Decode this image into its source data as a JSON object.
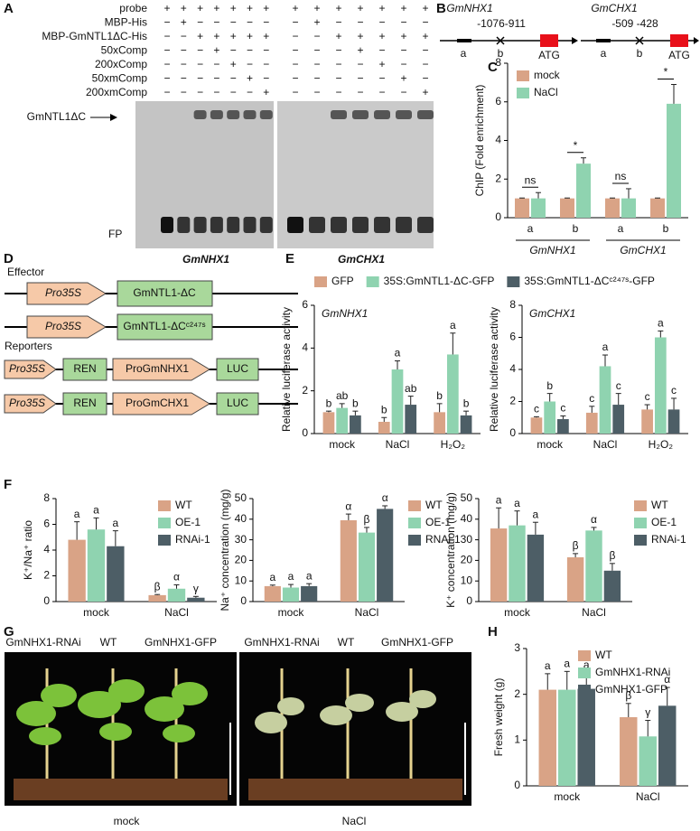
{
  "panel_labels": [
    "A",
    "B",
    "C",
    "D",
    "E",
    "F",
    "G",
    "H"
  ],
  "gel": {
    "rows": [
      {
        "label": "probe",
        "left": [
          "+",
          "+",
          "+",
          "+",
          "+",
          "+",
          "+"
        ],
        "right": [
          "+",
          "+",
          "+",
          "+",
          "+",
          "+",
          "+"
        ]
      },
      {
        "label": "MBP-His",
        "left": [
          "−",
          "+",
          "−",
          "−",
          "−",
          "−",
          "−"
        ],
        "right": [
          "−",
          "+",
          "−",
          "−",
          "−",
          "−",
          "−"
        ]
      },
      {
        "label": "MBP-GmNTL1ΔC-His",
        "left": [
          "−",
          "−",
          "+",
          "+",
          "+",
          "+",
          "+"
        ],
        "right": [
          "−",
          "−",
          "+",
          "+",
          "+",
          "+",
          "+"
        ]
      },
      {
        "label": "50xComp",
        "left": [
          "−",
          "−",
          "−",
          "+",
          "−",
          "−",
          "−"
        ],
        "right": [
          "−",
          "−",
          "−",
          "+",
          "−",
          "−",
          "−"
        ]
      },
      {
        "label": "200xComp",
        "left": [
          "−",
          "−",
          "−",
          "−",
          "+",
          "−",
          "−"
        ],
        "right": [
          "−",
          "−",
          "−",
          "−",
          "+",
          "−",
          "−"
        ]
      },
      {
        "label": "50xmComp",
        "left": [
          "−",
          "−",
          "−",
          "−",
          "−",
          "+",
          "−"
        ],
        "right": [
          "−",
          "−",
          "−",
          "−",
          "−",
          "+",
          "−"
        ]
      },
      {
        "label": "200xmComp",
        "left": [
          "−",
          "−",
          "−",
          "−",
          "−",
          "−",
          "+"
        ],
        "right": [
          "−",
          "−",
          "−",
          "−",
          "−",
          "−",
          "+"
        ]
      }
    ],
    "band_label": "GmNTL1ΔC",
    "free_probe": "FP",
    "gels": [
      "GmNHX1",
      "GmCHX1"
    ]
  },
  "promoters": [
    {
      "gene": "GmNHX1",
      "region": "-1076-911",
      "sites": [
        "a",
        "b"
      ],
      "start": "ATG"
    },
    {
      "gene": "GmCHX1",
      "region": "-509 -428",
      "sites": [
        "a",
        "b"
      ],
      "start": "ATG"
    }
  ],
  "constructs": {
    "effector_title": "Effector",
    "effectors": [
      [
        "Pro35S",
        "GmNTL1-ΔC"
      ],
      [
        "Pro35S",
        "GmNTL1-ΔCᶜ²⁴⁷ˢ"
      ]
    ],
    "reporters_title": "Reporters",
    "reporters": [
      [
        "Pro35S",
        "REN",
        "ProGmNHX1",
        "LUC"
      ],
      [
        "Pro35S",
        "REN",
        "ProGmCHX1",
        "LUC"
      ]
    ]
  },
  "photos": {
    "genotypes": [
      "GmNHX1-RNAi",
      "WT",
      "GmNHX1-GFP"
    ],
    "conditions": [
      "mock",
      "NaCl"
    ]
  },
  "chart_data": [
    {
      "type": "bar",
      "ylabel": "ChIP (Fold enrichment)",
      "categories": [
        "a",
        "b",
        "a",
        "b"
      ],
      "groups": [
        "GmNHX1",
        "GmCHX1"
      ],
      "annotations": [
        "ns",
        "*",
        "ns",
        "*"
      ],
      "legend": "upper left",
      "ylim": [
        0,
        8
      ],
      "yticks": [
        0,
        2,
        4,
        6,
        8
      ],
      "series": [
        {
          "name": "mock",
          "color": "#d9a386",
          "values": [
            1,
            1,
            1,
            1
          ],
          "errors": [
            0.02,
            0.02,
            0.02,
            0.02
          ]
        },
        {
          "name": "NaCl",
          "color": "#8fd3b0",
          "values": [
            1.0,
            2.8,
            1.0,
            5.9
          ],
          "errors": [
            0.3,
            0.3,
            0.5,
            1.0
          ]
        }
      ]
    },
    {
      "type": "bar",
      "title": "GmNHX1",
      "ylabel": "Relative luciferase activity",
      "categories": [
        "mock",
        "NaCl",
        "H₂O₂"
      ],
      "legend": "top",
      "ylim": [
        0,
        6
      ],
      "yticks": [
        0,
        2,
        4,
        6
      ],
      "series": [
        {
          "name": "GFP",
          "color": "#d9a386",
          "values": [
            1.0,
            0.55,
            1.0
          ],
          "errors": [
            0.05,
            0.2,
            0.4
          ],
          "letters": [
            "b",
            "b",
            "b"
          ]
        },
        {
          "name": "35S:GmNTL1-ΔC-GFP",
          "color": "#8fd3b0",
          "values": [
            1.2,
            3.0,
            3.7
          ],
          "errors": [
            0.2,
            0.4,
            1.0
          ],
          "letters": [
            "ab",
            "a",
            "a"
          ]
        },
        {
          "name": "35S:GmNTL1-ΔCᶜ²⁴⁷ˢ-GFP",
          "color": "#4d5e66",
          "values": [
            0.85,
            1.35,
            0.85
          ],
          "errors": [
            0.2,
            0.4,
            0.2
          ],
          "letters": [
            "b",
            "ab",
            "b"
          ]
        }
      ]
    },
    {
      "type": "bar",
      "title": "GmCHX1",
      "ylabel": "Relative luciferase activity",
      "categories": [
        "mock",
        "NaCl",
        "H₂O₂"
      ],
      "ylim": [
        0,
        8
      ],
      "yticks": [
        0,
        2,
        4,
        6,
        8
      ],
      "series": [
        {
          "color": "#d9a386",
          "values": [
            1.0,
            1.3,
            1.5
          ],
          "errors": [
            0.05,
            0.4,
            0.3
          ],
          "letters": [
            "c",
            "c",
            "c"
          ]
        },
        {
          "color": "#8fd3b0",
          "values": [
            2.0,
            4.2,
            6.0
          ],
          "errors": [
            0.5,
            0.7,
            0.4
          ],
          "letters": [
            "b",
            "a",
            "a"
          ]
        },
        {
          "color": "#4d5e66",
          "values": [
            0.9,
            1.8,
            1.5
          ],
          "errors": [
            0.2,
            0.7,
            0.7
          ],
          "letters": [
            "c",
            "c",
            "c"
          ]
        }
      ]
    },
    {
      "type": "bar",
      "ylabel": "K⁺/Na⁺ ratio",
      "categories": [
        "mock",
        "NaCl"
      ],
      "legend": "upper right",
      "ylim": [
        0,
        8
      ],
      "yticks": [
        0,
        2,
        4,
        6,
        8
      ],
      "series": [
        {
          "name": "WT",
          "color": "#d9a386",
          "values": [
            4.8,
            0.5
          ],
          "errors": [
            1.4,
            0.05
          ],
          "letters": [
            "a",
            "β"
          ]
        },
        {
          "name": "OE-1",
          "color": "#8fd3b0",
          "values": [
            5.6,
            1.0
          ],
          "errors": [
            0.9,
            0.3
          ],
          "letters": [
            "a",
            "α"
          ]
        },
        {
          "name": "RNAi-1",
          "color": "#4d5e66",
          "values": [
            4.3,
            0.3
          ],
          "errors": [
            1.2,
            0.1
          ],
          "letters": [
            "a",
            "γ"
          ]
        }
      ]
    },
    {
      "type": "bar",
      "ylabel": "Na⁺ concentration (mg/g)",
      "categories": [
        "mock",
        "NaCl"
      ],
      "legend": "upper right",
      "ylim": [
        0,
        50
      ],
      "yticks": [
        0,
        10,
        20,
        30,
        40,
        50
      ],
      "series": [
        {
          "name": "WT",
          "color": "#d9a386",
          "values": [
            7.5,
            39.5
          ],
          "errors": [
            0.5,
            3
          ],
          "letters": [
            "a",
            "α"
          ]
        },
        {
          "name": "OE-1",
          "color": "#8fd3b0",
          "values": [
            6.8,
            33.5
          ],
          "errors": [
            1.5,
            2.5
          ],
          "letters": [
            "a",
            "β"
          ]
        },
        {
          "name": "RNAi-1",
          "color": "#4d5e66",
          "values": [
            7.5,
            45
          ],
          "errors": [
            1.2,
            1.5
          ],
          "letters": [
            "a",
            "α"
          ]
        }
      ]
    },
    {
      "type": "bar",
      "ylabel": "K⁺ concentration (mg/g)",
      "categories": [
        "mock",
        "NaCl"
      ],
      "legend": "upper right",
      "ylim": [
        0,
        50
      ],
      "yticks": [
        0,
        10,
        20,
        30,
        40,
        50
      ],
      "series": [
        {
          "name": "WT",
          "color": "#d9a386",
          "values": [
            35.5,
            21.5
          ],
          "errors": [
            10,
            1.8
          ],
          "letters": [
            "a",
            "β"
          ]
        },
        {
          "name": "OE-1",
          "color": "#8fd3b0",
          "values": [
            37,
            34.5
          ],
          "errors": [
            7,
            1.5
          ],
          "letters": [
            "a",
            "α"
          ]
        },
        {
          "name": "RNAi-1",
          "color": "#4d5e66",
          "values": [
            32.5,
            15
          ],
          "errors": [
            6,
            3.5
          ],
          "letters": [
            "a",
            "β"
          ]
        }
      ]
    },
    {
      "type": "bar",
      "ylabel": "Fresh weight (g)",
      "categories": [
        "mock",
        "NaCl"
      ],
      "legend": "upper right",
      "ylim": [
        0,
        3
      ],
      "yticks": [
        0,
        1,
        2,
        3
      ],
      "series": [
        {
          "name": "WT",
          "color": "#d9a386",
          "values": [
            2.1,
            1.5
          ],
          "errors": [
            0.35,
            0.3
          ],
          "letters": [
            "a",
            "β"
          ]
        },
        {
          "name": "GmNHX1-RNAi",
          "color": "#8fd3b0",
          "values": [
            2.1,
            1.08
          ],
          "errors": [
            0.4,
            0.35
          ],
          "letters": [
            "a",
            "γ"
          ]
        },
        {
          "name": "GmNHX1-GFP",
          "color": "#4d5e66",
          "values": [
            2.12,
            1.75
          ],
          "errors": [
            0.35,
            0.4
          ],
          "letters": [
            "a",
            "α"
          ]
        }
      ]
    }
  ]
}
